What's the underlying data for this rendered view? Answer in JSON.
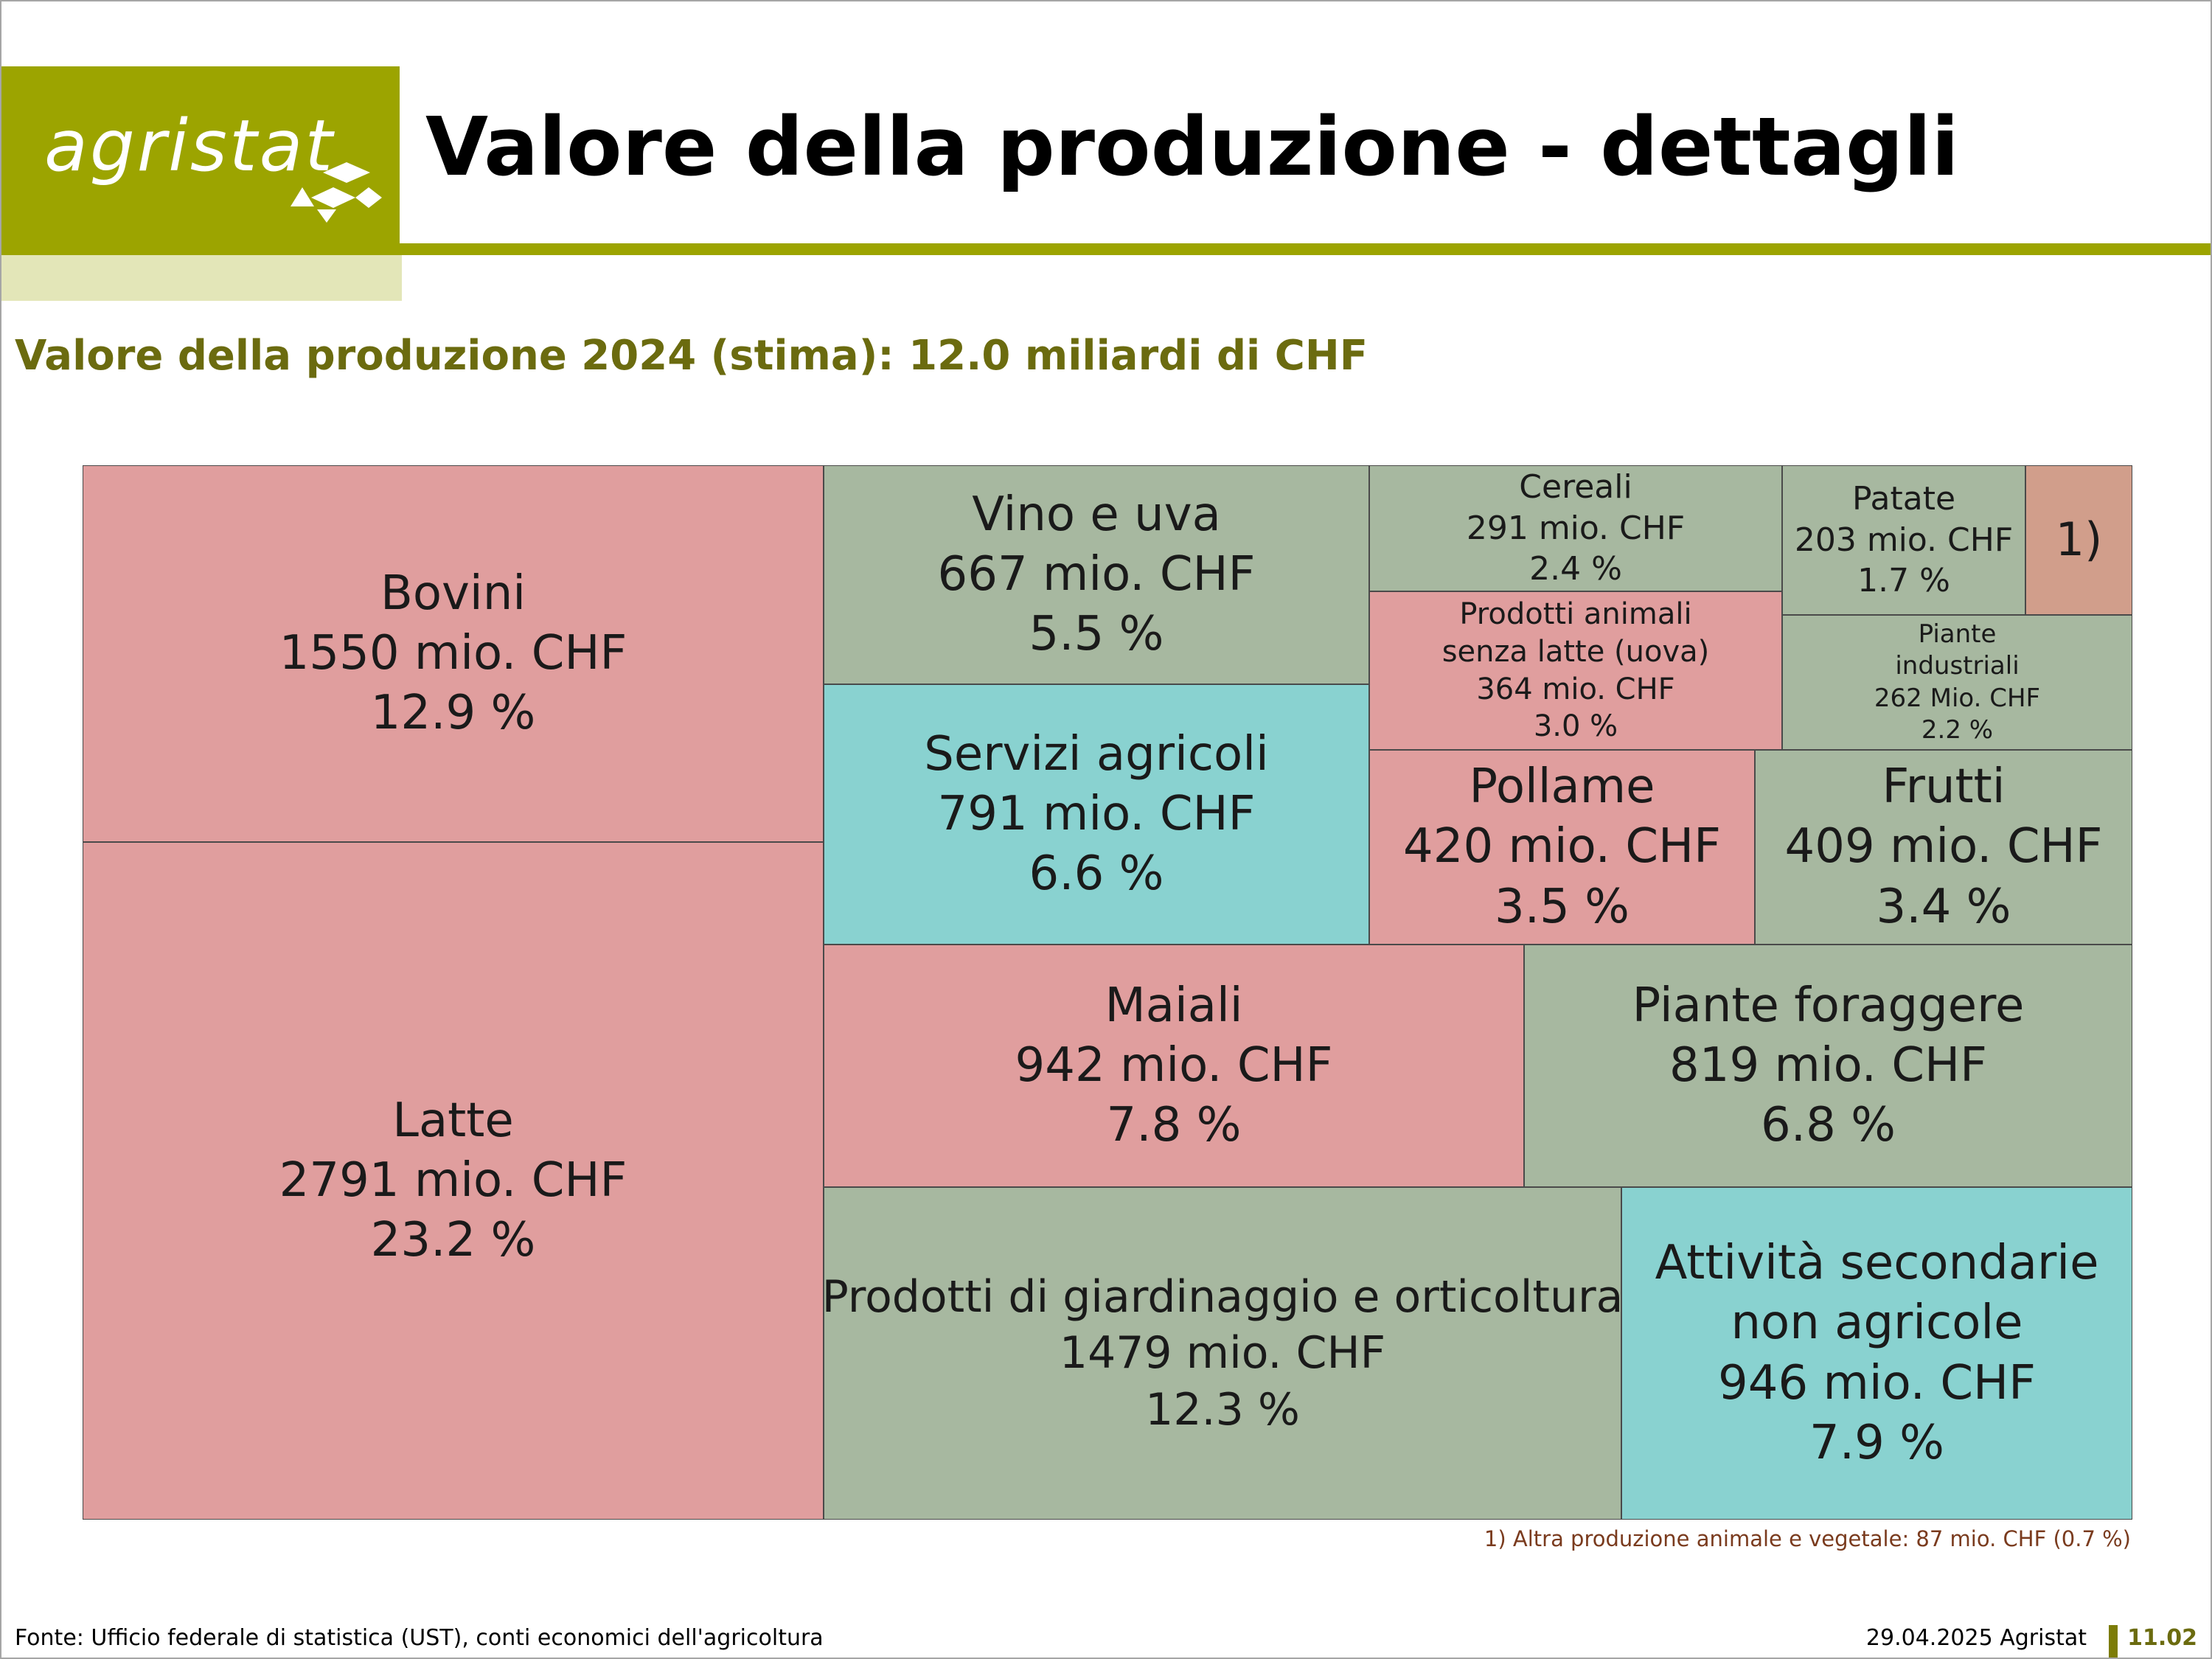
{
  "header": {
    "logo_text": "agristat",
    "title": "Valore della produzione - dettagli",
    "colors": {
      "brand": "#9ca400",
      "brand_light": "#e3e6b8",
      "subtitle": "#6b6b0f"
    }
  },
  "chart_data": {
    "type": "treemap",
    "title": "Valore della produzione 2024 (stima): 12.0 miliardi di CHF",
    "unit": "mio. CHF",
    "total": "12.0 miliardi di CHF",
    "items": [
      {
        "label": "Bovini",
        "lines": [
          "Bovini"
        ],
        "value": 1550,
        "value_text": "1550 mio. CHF",
        "share": 12.9,
        "share_text": "12.9 %",
        "color": "#e09e9e"
      },
      {
        "label": "Latte",
        "lines": [
          "Latte"
        ],
        "value": 2791,
        "value_text": "2791 mio. CHF",
        "share": 23.2,
        "share_text": "23.2 %",
        "color": "#e09e9e"
      },
      {
        "label": "Vino e uva",
        "lines": [
          "Vino e uva"
        ],
        "value": 667,
        "value_text": "667 mio. CHF",
        "share": 5.5,
        "share_text": "5.5 %",
        "color": "#a7b8a0"
      },
      {
        "label": "Servizi agricoli",
        "lines": [
          "Servizi agricoli"
        ],
        "value": 791,
        "value_text": "791 mio. CHF",
        "share": 6.6,
        "share_text": "6.6 %",
        "color": "#89d2d0"
      },
      {
        "label": "Cereali",
        "lines": [
          "Cereali"
        ],
        "value": 291,
        "value_text": "291 mio. CHF",
        "share": 2.4,
        "share_text": "2.4 %",
        "color": "#a7b8a0"
      },
      {
        "label": "Patate",
        "lines": [
          "Patate"
        ],
        "value": 203,
        "value_text": "203 mio. CHF",
        "share": 1.7,
        "share_text": "1.7 %",
        "color": "#a7b8a0"
      },
      {
        "label": "1)",
        "lines": [
          "1)"
        ],
        "value": 87,
        "value_text": "",
        "share": 0.7,
        "share_text": "",
        "color": "#d19e8b"
      },
      {
        "label": "Prodotti animali senza latte (uova)",
        "lines": [
          "Prodotti animali",
          "senza latte (uova)"
        ],
        "value": 364,
        "value_text": "364 mio. CHF",
        "share": 3.0,
        "share_text": "3.0 %",
        "color": "#e09e9e"
      },
      {
        "label": "Piante industriali",
        "lines": [
          "Piante",
          "industriali"
        ],
        "value": 262,
        "value_text": "262 Mio. CHF",
        "share": 2.2,
        "share_text": "2.2 %",
        "color": "#a7b8a0"
      },
      {
        "label": "Pollame",
        "lines": [
          "Pollame"
        ],
        "value": 420,
        "value_text": "420 mio. CHF",
        "share": 3.5,
        "share_text": "3.5 %",
        "color": "#e09e9e"
      },
      {
        "label": "Frutti",
        "lines": [
          "Frutti"
        ],
        "value": 409,
        "value_text": "409 mio. CHF",
        "share": 3.4,
        "share_text": "3.4 %",
        "color": "#a7b8a0"
      },
      {
        "label": "Maiali",
        "lines": [
          "Maiali"
        ],
        "value": 942,
        "value_text": "942 mio. CHF",
        "share": 7.8,
        "share_text": "7.8 %",
        "color": "#e09e9e"
      },
      {
        "label": "Piante foraggere",
        "lines": [
          "Piante foraggere"
        ],
        "value": 819,
        "value_text": "819 mio. CHF",
        "share": 6.8,
        "share_text": "6.8 %",
        "color": "#a7b8a0"
      },
      {
        "label": "Prodotti di giardinaggio e orticoltura",
        "lines": [
          "Prodotti di giardinaggio e orticoltura"
        ],
        "value": 1479,
        "value_text": "1479 mio. CHF",
        "share": 12.3,
        "share_text": "12.3 %",
        "color": "#a7b8a0"
      },
      {
        "label": "Attività secondarie non agricole",
        "lines": [
          "Attività secondarie",
          "non agricole"
        ],
        "value": 946,
        "value_text": "946 mio. CHF",
        "share": 7.9,
        "share_text": "7.9 %",
        "color": "#89d2d0"
      }
    ],
    "footnote": "1) Altra produzione animale e vegetale: 87 mio. CHF (0.7 %)"
  },
  "footer": {
    "source": "Fonte: Ufficio federale di statistica (UST), conti economici dell'agricoltura",
    "date": "29.04.2025 Agristat",
    "page_number": "11.02"
  }
}
